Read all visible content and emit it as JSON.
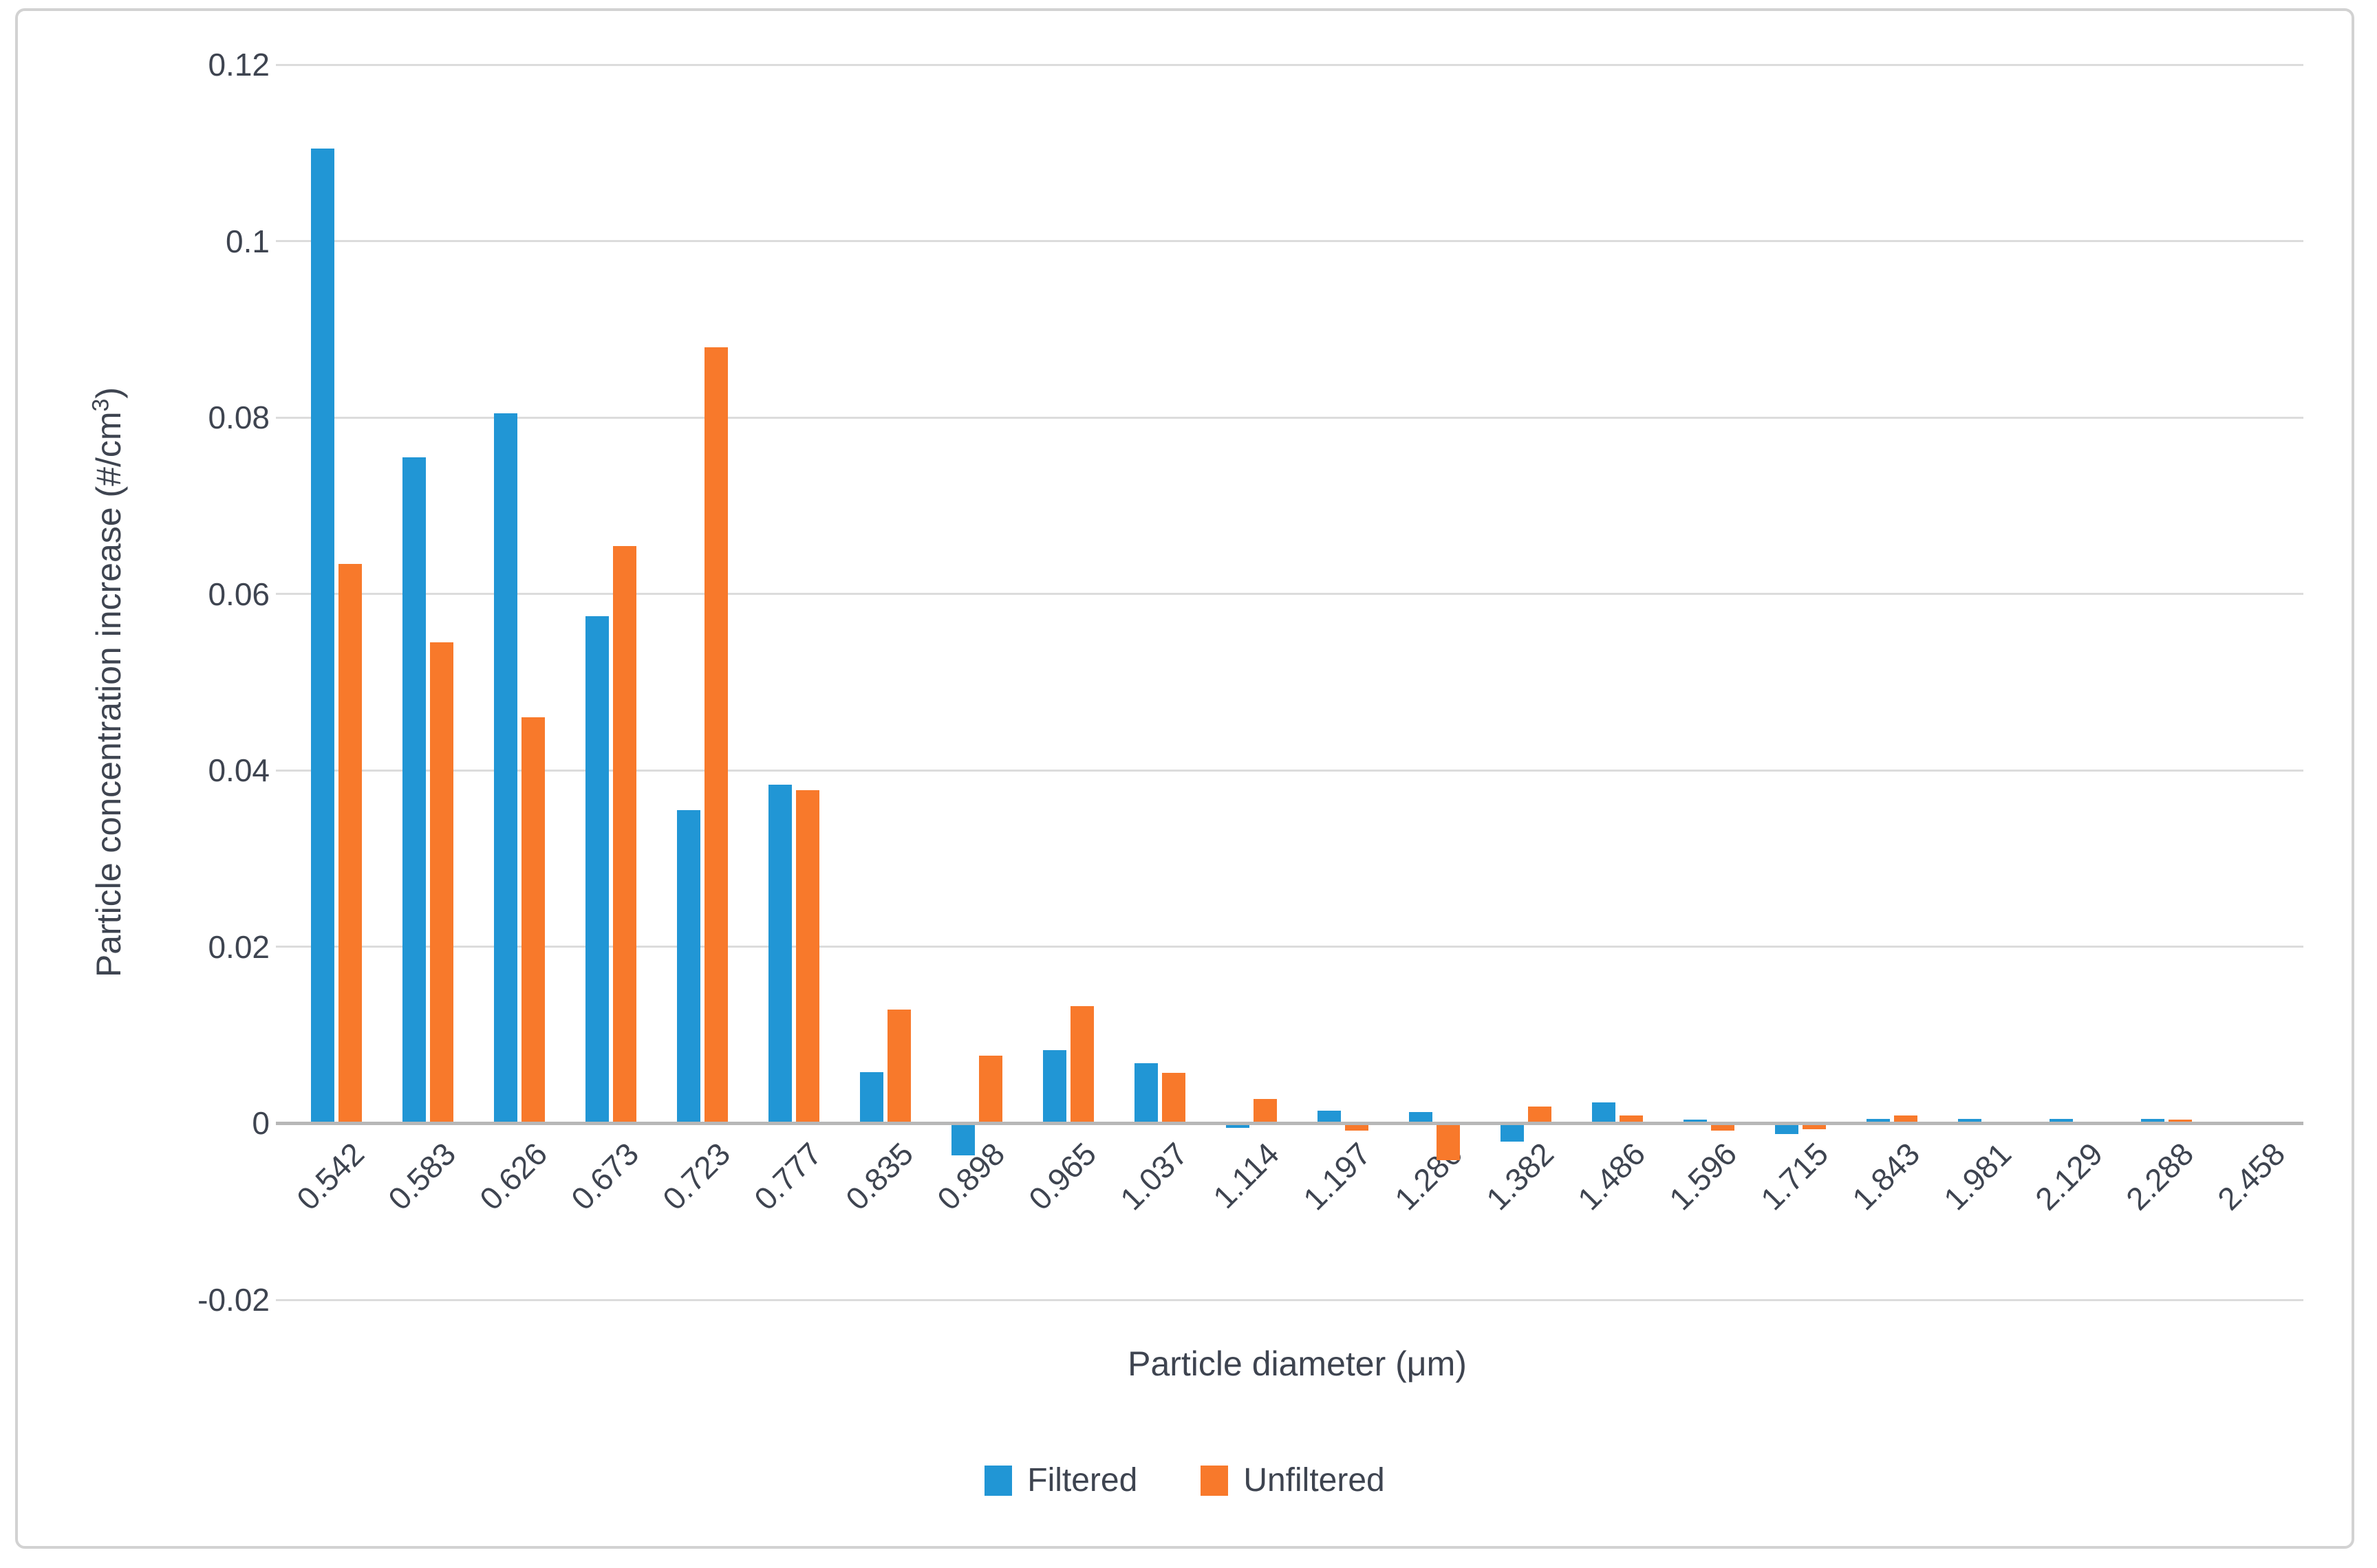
{
  "chart_data": {
    "type": "bar",
    "title": "",
    "xlabel": "Particle diameter (μm)",
    "ylabel": "Particle concentration increase (#/cm³)",
    "ylabel_parts": {
      "pre": "Particle concentration increase (#/cm",
      "sup": "3",
      "post": ")"
    },
    "categories": [
      "0.542",
      "0.583",
      "0.626",
      "0.673",
      "0.723",
      "0.777",
      "0.835",
      "0.898",
      "0.965",
      "1.037",
      "1.114",
      "1.197",
      "1.286",
      "1.382",
      "1.486",
      "1.596",
      "1.715",
      "1.843",
      "1.981",
      "2.129",
      "2.288",
      "2.458"
    ],
    "series": [
      {
        "name": "Filtered",
        "color": "#2196d5",
        "values": [
          0.1105,
          0.0755,
          0.0805,
          0.0575,
          0.0355,
          0.0384,
          0.0058,
          -0.0036,
          0.0083,
          0.0068,
          -0.0005,
          0.0014,
          0.0013,
          -0.0021,
          0.0024,
          0.0004,
          -0.0012,
          0.0005,
          0.0005,
          0.0005,
          0.0005,
          0.0001
        ]
      },
      {
        "name": "Unfiltered",
        "color": "#f8792b",
        "values": [
          0.0634,
          0.0545,
          0.046,
          0.0654,
          0.088,
          0.0378,
          0.0129,
          0.0077,
          0.0133,
          0.0057,
          0.0028,
          -0.0008,
          -0.0042,
          0.0019,
          0.0009,
          -0.0008,
          -0.0007,
          0.0009,
          0.0001,
          0.0001,
          0.0004,
          0.0001
        ]
      }
    ],
    "y_ticks": [
      0.12,
      0.1,
      0.08,
      0.06,
      0.04,
      0.02,
      0,
      -0.02
    ],
    "y_tick_labels": [
      "0.12",
      "0.1",
      "0.08",
      "0.06",
      "0.04",
      "0.02",
      "0",
      "-0.02"
    ],
    "ylim": [
      -0.02,
      0.12
    ],
    "grid": true,
    "legend_position": "bottom"
  },
  "colors": {
    "gridline": "#dcdcdc",
    "zero_axis": "#b7b7b7",
    "text": "#3e4450",
    "frame_border": "#d2d2d2",
    "background": "#ffffff"
  }
}
